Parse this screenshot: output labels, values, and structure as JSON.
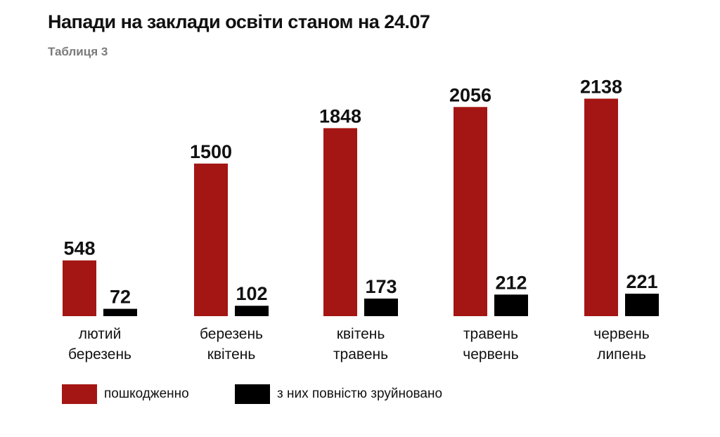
{
  "header": {
    "title": "Напади на заклади освіти станом на 24.07",
    "subtitle": "Таблиця 3"
  },
  "colors": {
    "damaged": "#a41613",
    "destroyed": "#000000"
  },
  "chart_data": {
    "type": "bar",
    "title": "Напади на заклади освіти станом на 24.07",
    "subtitle": "Таблиця 3",
    "categories": [
      [
        "лютий",
        "березень"
      ],
      [
        "березень",
        "квітень"
      ],
      [
        "квітень",
        "травень"
      ],
      [
        "травень",
        "червень"
      ],
      [
        "червень",
        "липень"
      ]
    ],
    "series": [
      {
        "name": "пошкодженно",
        "values": [
          548,
          1500,
          1848,
          2056,
          2138
        ],
        "color": "#a41613"
      },
      {
        "name": "з них повністю зруйновано",
        "values": [
          72,
          102,
          173,
          212,
          221
        ],
        "color": "#000000"
      }
    ],
    "data_labels": true,
    "grid": false,
    "legend": "bottom-left"
  }
}
